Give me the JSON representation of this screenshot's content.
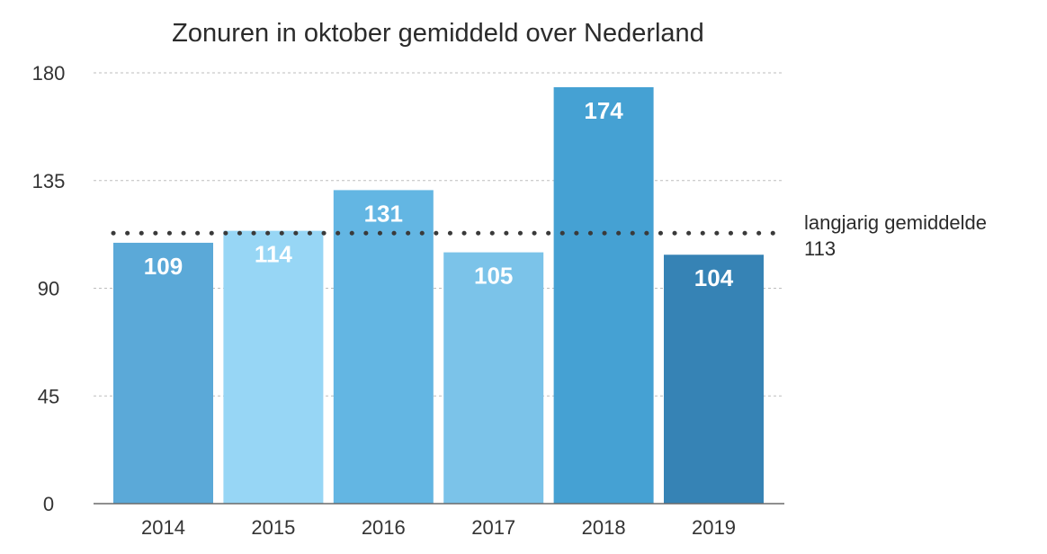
{
  "chart_data": {
    "type": "bar",
    "title": "Zonuren in oktober gemiddeld over Nederland",
    "xlabel": "",
    "ylabel": "",
    "categories": [
      "2014",
      "2015",
      "2016",
      "2017",
      "2018",
      "2019"
    ],
    "values": [
      109,
      114,
      131,
      105,
      174,
      104
    ],
    "data_labels": [
      "109",
      "114",
      "131",
      "105",
      "174",
      "104"
    ],
    "bar_colors": [
      "#5ba9d8",
      "#97d6f5",
      "#63b6e3",
      "#7bc3e9",
      "#45a1d3",
      "#3683b5"
    ],
    "ylim": [
      0,
      180
    ],
    "yticks": [
      0,
      45,
      90,
      135,
      180
    ],
    "ytick_labels": [
      "0",
      "45",
      "90",
      "135",
      "180"
    ],
    "grid": "horizontal dashed",
    "reference_line": {
      "value": 113,
      "label": "langjarig gemiddelde",
      "value_label": "113",
      "style": "dotted",
      "color": "#3a3a3a"
    }
  }
}
